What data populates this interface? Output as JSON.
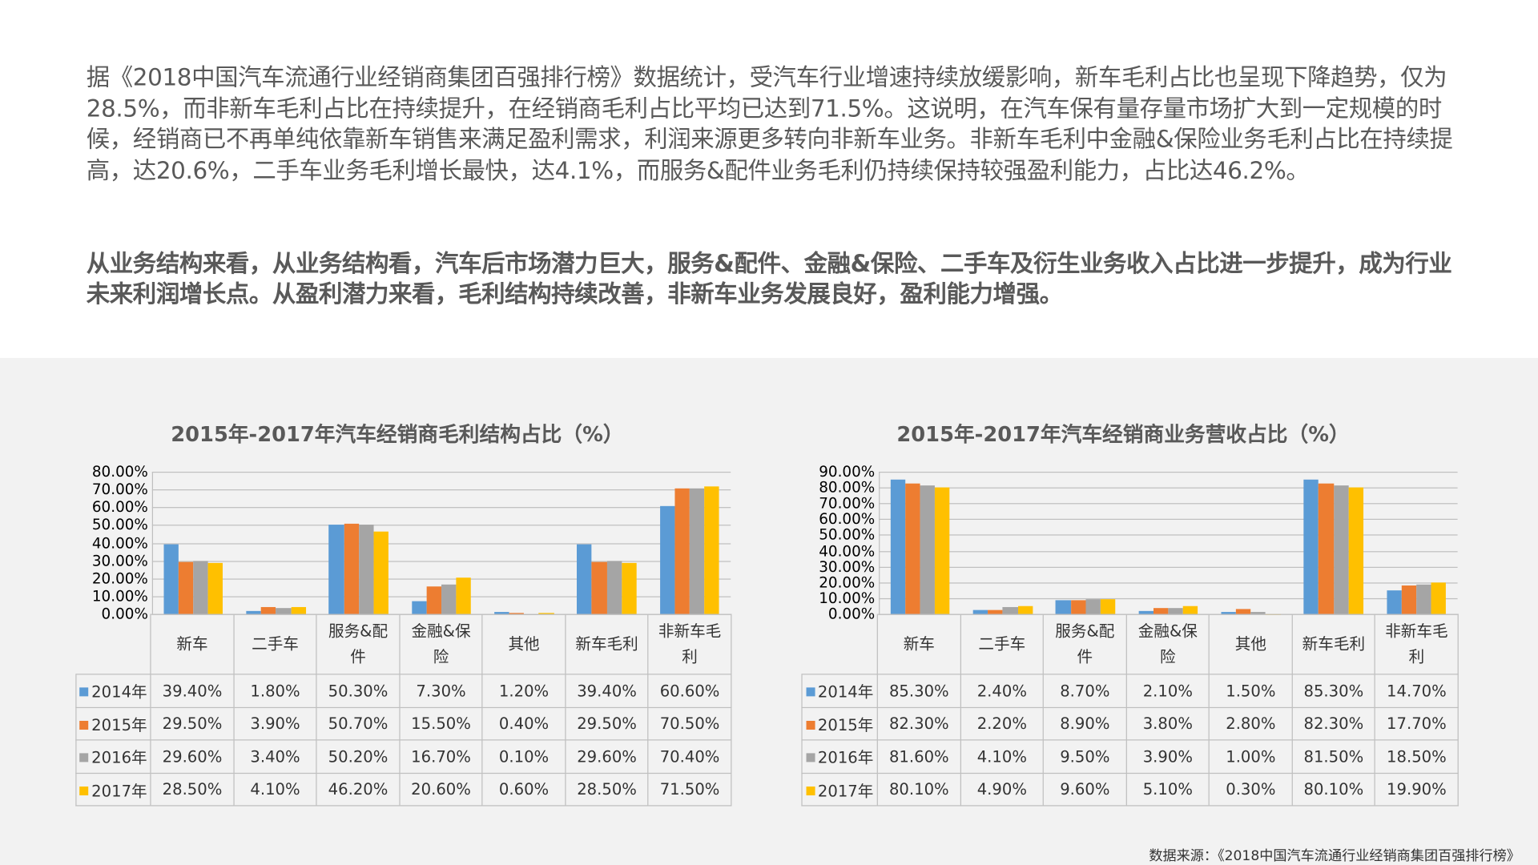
{
  "text": {
    "paragraph1": "据《2018中国汽车流通行业经销商集团百强排行榜》数据统计，受汽车行业增速持续放缓影响，新车毛利占比也呈现下降趋势，仅为28.5%，而非新车毛利占比在持续提升，在经销商毛利占比平均已达到71.5%。这说明，在汽车保有量存量市场扩大到一定规模的时候，经销商已不再单纯依靠新车销售来满足盈利需求，利润来源更多转向非新车业务。非新车毛利中金融&保险业务毛利占比在持续提高，达20.6%，二手车业务毛利增长最快，达4.1%，而服务&配件业务毛利仍持续保持较强盈利能力，占比达46.2%。",
    "paragraph2": "从业务结构来看，从业务结构看，汽车后市场潜力巨大，服务&配件、金融&保险、二手车及衍生业务收入占比进一步提升，成为行业未来利润增长点。从盈利潜力来看，毛利结构持续改善，非新车业务发展良好，盈利能力增强。",
    "source": "数据来源：《2018中国汽车流通行业经销商集团百强排行榜》"
  },
  "colors": {
    "2014年": "#5b9bd5",
    "2015年": "#ed7d31",
    "2016年": "#a5a5a5",
    "2017年": "#ffc000"
  },
  "chart_data": [
    {
      "type": "bar",
      "title": "2015年-2017年汽车经销商毛利结构占比（%）",
      "categories": [
        "新车",
        "二手车",
        "服务&配件",
        "金融&保险",
        "其他",
        "新车毛利",
        "非新车毛利"
      ],
      "ylim": [
        0,
        80
      ],
      "yticks": [
        "0.00%",
        "10.00%",
        "20.00%",
        "30.00%",
        "40.00%",
        "50.00%",
        "60.00%",
        "70.00%",
        "80.00%"
      ],
      "grid": true,
      "legend": "data-table",
      "series": [
        {
          "name": "2014年",
          "values": [
            39.4,
            1.8,
            50.3,
            7.3,
            1.2,
            39.4,
            60.6
          ],
          "labels": [
            "39.40%",
            "1.80%",
            "50.30%",
            "7.30%",
            "1.20%",
            "39.40%",
            "60.60%"
          ]
        },
        {
          "name": "2015年",
          "values": [
            29.5,
            3.9,
            50.7,
            15.5,
            0.4,
            29.5,
            70.5
          ],
          "labels": [
            "29.50%",
            "3.90%",
            "50.70%",
            "15.50%",
            "0.40%",
            "29.50%",
            "70.50%"
          ]
        },
        {
          "name": "2016年",
          "values": [
            29.6,
            3.4,
            50.2,
            16.7,
            0.1,
            29.6,
            70.4
          ],
          "labels": [
            "29.60%",
            "3.40%",
            "50.20%",
            "16.70%",
            "0.10%",
            "29.60%",
            "70.40%"
          ]
        },
        {
          "name": "2017年",
          "values": [
            28.5,
            4.1,
            46.2,
            20.6,
            0.6,
            28.5,
            71.5
          ],
          "labels": [
            "28.50%",
            "4.10%",
            "46.20%",
            "20.60%",
            "0.60%",
            "28.50%",
            "71.50%"
          ]
        }
      ]
    },
    {
      "type": "bar",
      "title": "2015年-2017年汽车经销商业务营收占比（%）",
      "categories": [
        "新车",
        "二手车",
        "服务&配件",
        "金融&保险",
        "其他",
        "新车毛利",
        "非新车毛利"
      ],
      "ylim": [
        0,
        90
      ],
      "yticks": [
        "0.00%",
        "10.00%",
        "20.00%",
        "30.00%",
        "40.00%",
        "50.00%",
        "60.00%",
        "70.00%",
        "80.00%",
        "90.00%"
      ],
      "grid": true,
      "legend": "data-table",
      "series": [
        {
          "name": "2014年",
          "values": [
            85.3,
            2.4,
            8.7,
            2.1,
            1.5,
            85.3,
            14.7
          ],
          "labels": [
            "85.30%",
            "2.40%",
            "8.70%",
            "2.10%",
            "1.50%",
            "85.30%",
            "14.70%"
          ]
        },
        {
          "name": "2015年",
          "values": [
            82.3,
            2.2,
            8.9,
            3.8,
            2.8,
            82.3,
            17.7
          ],
          "labels": [
            "82.30%",
            "2.20%",
            "8.90%",
            "3.80%",
            "2.80%",
            "82.30%",
            "17.70%"
          ]
        },
        {
          "name": "2016年",
          "values": [
            81.6,
            4.1,
            9.5,
            3.9,
            1.0,
            81.5,
            18.5
          ],
          "labels": [
            "81.60%",
            "4.10%",
            "9.50%",
            "3.90%",
            "1.00%",
            "81.50%",
            "18.50%"
          ]
        },
        {
          "name": "2017年",
          "values": [
            80.1,
            4.9,
            9.6,
            5.1,
            0.3,
            80.1,
            19.9
          ],
          "labels": [
            "80.10%",
            "4.90%",
            "9.60%",
            "5.10%",
            "0.30%",
            "80.10%",
            "19.90%"
          ]
        }
      ]
    }
  ]
}
